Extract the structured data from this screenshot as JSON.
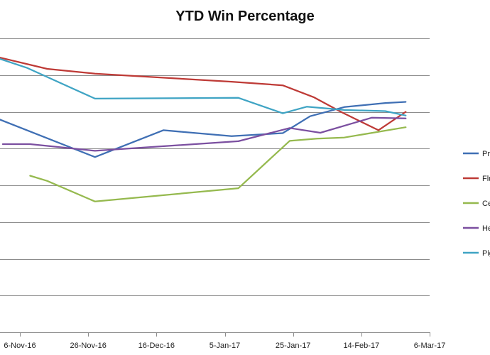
{
  "chart_data": {
    "type": "line",
    "title": "YTD Win Percentage",
    "xlabel": "",
    "ylabel": "",
    "x_tick_labels": [
      "6-Nov-16",
      "26-Nov-16",
      "16-Dec-16",
      "5-Jan-17",
      "25-Jan-17",
      "14-Feb-17",
      "6-Mar-17"
    ],
    "x_axis_range": [
      "2016-10-27",
      "2017-03-06"
    ],
    "grid": "horizontal",
    "legend_position": "right (cropped)",
    "series": [
      {
        "name": "Pr",
        "color": "#3F6FB4",
        "points": [
          [
            "2016-10-27",
            0.594
          ],
          [
            "2016-11-28",
            0.477
          ],
          [
            "2016-12-18",
            0.55
          ],
          [
            "2017-01-07",
            0.534
          ],
          [
            "2017-01-22",
            0.542
          ],
          [
            "2017-01-30",
            0.588
          ],
          [
            "2017-02-09",
            0.613
          ],
          [
            "2017-02-21",
            0.624
          ],
          [
            "2017-02-27",
            0.627
          ]
        ]
      },
      {
        "name": "Flu",
        "color": "#BE3A36",
        "points": [
          [
            "2016-10-27",
            0.757
          ],
          [
            "2016-11-14",
            0.717
          ],
          [
            "2016-11-28",
            0.704
          ],
          [
            "2017-01-07",
            0.682
          ],
          [
            "2017-01-22",
            0.672
          ],
          [
            "2017-01-31",
            0.64
          ],
          [
            "2017-02-08",
            0.6
          ],
          [
            "2017-02-19",
            0.55
          ],
          [
            "2017-02-27",
            0.6
          ]
        ]
      },
      {
        "name": "Ce",
        "color": "#95B94E",
        "points": [
          [
            "2016-11-09",
            0.426
          ],
          [
            "2016-11-14",
            0.412
          ],
          [
            "2016-11-28",
            0.356
          ],
          [
            "2017-01-09",
            0.392
          ],
          [
            "2017-01-24",
            0.521
          ],
          [
            "2017-02-01",
            0.527
          ],
          [
            "2017-02-09",
            0.53
          ],
          [
            "2017-02-27",
            0.558
          ]
        ]
      },
      {
        "name": "He",
        "color": "#7B4FA0",
        "points": [
          [
            "2016-11-01",
            0.512
          ],
          [
            "2016-11-09",
            0.512
          ],
          [
            "2016-11-28",
            0.494
          ],
          [
            "2017-01-09",
            0.52
          ],
          [
            "2017-01-24",
            0.556
          ],
          [
            "2017-02-02",
            0.543
          ],
          [
            "2017-02-17",
            0.584
          ],
          [
            "2017-02-27",
            0.582
          ]
        ]
      },
      {
        "name": "Pig",
        "color": "#3FA4C4",
        "points": [
          [
            "2016-10-27",
            0.757
          ],
          [
            "2016-11-08",
            0.72
          ],
          [
            "2016-11-28",
            0.636
          ],
          [
            "2017-01-09",
            0.638
          ],
          [
            "2017-01-22",
            0.596
          ],
          [
            "2017-01-29",
            0.614
          ],
          [
            "2017-02-09",
            0.605
          ],
          [
            "2017-02-21",
            0.602
          ],
          [
            "2017-02-27",
            0.59
          ]
        ]
      }
    ]
  }
}
